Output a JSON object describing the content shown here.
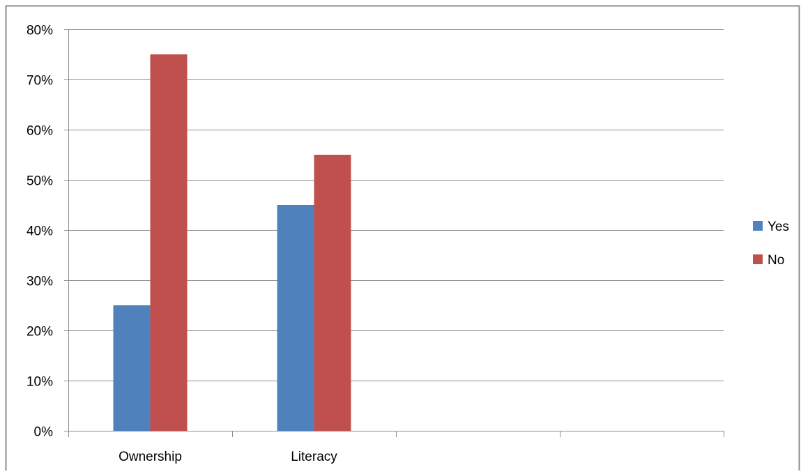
{
  "chart_data": {
    "type": "bar",
    "categories": [
      "Ownership",
      "Literacy",
      "",
      ""
    ],
    "series": [
      {
        "name": "Yes",
        "color": "#4F81BD",
        "values": [
          25,
          45,
          null,
          null
        ]
      },
      {
        "name": "No",
        "color": "#C0504D",
        "values": [
          75,
          55,
          null,
          null
        ]
      }
    ],
    "ylim": [
      0,
      80
    ],
    "yticks": [
      0,
      10,
      20,
      30,
      40,
      50,
      60,
      70,
      80
    ],
    "ytick_labels": [
      "0%",
      "10%",
      "20%",
      "30%",
      "40%",
      "50%",
      "60%",
      "70%",
      "80%"
    ],
    "grid": true,
    "legend_position": "right"
  }
}
